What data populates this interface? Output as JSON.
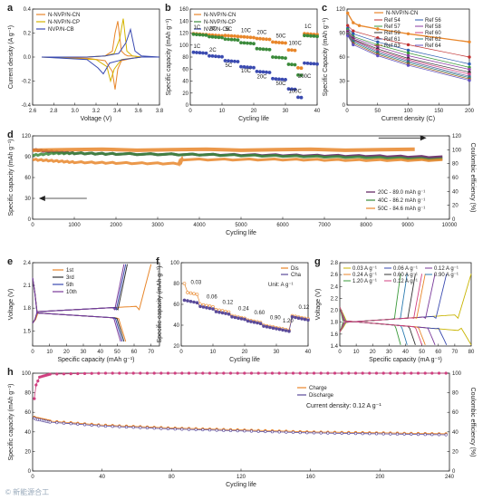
{
  "figure": {
    "panels": [
      "a",
      "b",
      "c",
      "d",
      "e",
      "f",
      "g",
      "h"
    ],
    "watermark": "© 新能源合工"
  },
  "chart_data": [
    {
      "panel": "a",
      "type": "line",
      "xlabel": "Voltage (V)",
      "ylabel": "Current density (A g⁻¹)",
      "xlim": [
        2.4,
        3.8
      ],
      "ylim": [
        -0.4,
        0.4
      ],
      "xticks": [
        "2.6",
        "2.8",
        "3.0",
        "3.2",
        "3.4",
        "3.6",
        "3.8"
      ],
      "yticks": [
        "-0.4",
        "-0.2",
        "0.0",
        "0.2",
        "0.4"
      ],
      "series": [
        {
          "name": "N-NVP/N-CN",
          "color": "#e8862a",
          "x": [
            2.5,
            3.0,
            3.2,
            3.28,
            3.31,
            3.34,
            3.38,
            3.42,
            3.45,
            3.5,
            3.6,
            3.8,
            3.6,
            3.5,
            3.38,
            3.34,
            3.31,
            3.28,
            3.2,
            3.0,
            2.5
          ],
          "y": [
            0.0,
            0.0,
            0.01,
            0.05,
            0.2,
            0.3,
            0.05,
            0.02,
            0.01,
            0.01,
            0.0,
            0.0,
            0.0,
            -0.01,
            -0.03,
            -0.1,
            -0.27,
            -0.12,
            -0.03,
            -0.01,
            0.0
          ]
        },
        {
          "name": "N-NVP/N-CP",
          "color": "#d4b400",
          "x": [
            2.5,
            3.0,
            3.2,
            3.3,
            3.36,
            3.4,
            3.44,
            3.5,
            3.6,
            3.8,
            3.6,
            3.5,
            3.38,
            3.3,
            3.26,
            3.22,
            3.1,
            2.5
          ],
          "y": [
            0.0,
            0.0,
            0.01,
            0.03,
            0.15,
            0.32,
            0.05,
            0.01,
            0.0,
            0.0,
            0.0,
            -0.01,
            -0.02,
            -0.1,
            -0.2,
            -0.08,
            -0.02,
            0.0
          ]
        },
        {
          "name": "NVP/N-CB",
          "color": "#3a4ab0",
          "x": [
            2.5,
            3.0,
            3.2,
            3.35,
            3.43,
            3.48,
            3.53,
            3.6,
            3.8,
            3.6,
            3.4,
            3.25,
            3.18,
            3.12,
            3.0,
            2.5
          ],
          "y": [
            0.0,
            0.0,
            0.01,
            0.03,
            0.12,
            0.23,
            0.05,
            0.01,
            0.0,
            0.0,
            -0.02,
            -0.05,
            -0.14,
            -0.09,
            -0.02,
            0.0
          ]
        }
      ]
    },
    {
      "panel": "b",
      "type": "scatter",
      "xlabel": "Cycling life",
      "ylabel": "Specific capacity (mAh g⁻¹)",
      "xlim": [
        0,
        40
      ],
      "ylim": [
        0,
        160
      ],
      "xticks": [
        "0",
        "10",
        "20",
        "30",
        "40"
      ],
      "yticks": [
        "0",
        "20",
        "40",
        "60",
        "80",
        "100",
        "120",
        "140",
        "160"
      ],
      "rate_labels": [
        "1C",
        "2C",
        "5C",
        "10C",
        "20C",
        "50C",
        "100C",
        "1C"
      ],
      "rate_label_200": "200C",
      "series": [
        {
          "name": "N-NVP/N-CN",
          "color": "#e8862a",
          "steps": [
            [
              1,
              5,
              119
            ],
            [
              6,
              10,
              117
            ],
            [
              11,
              15,
              116
            ],
            [
              16,
              20,
              114
            ],
            [
              21,
              25,
              111
            ],
            [
              26,
              30,
              105
            ],
            [
              31,
              33,
              92
            ],
            [
              34,
              35,
              62
            ],
            [
              36,
              40,
              119
            ]
          ]
        },
        {
          "name": "N-NVP/N-CP",
          "color": "#3a8a3a",
          "steps": [
            [
              1,
              5,
              118
            ],
            [
              6,
              10,
              114
            ],
            [
              11,
              15,
              110
            ],
            [
              16,
              20,
              104
            ],
            [
              21,
              25,
              94
            ],
            [
              26,
              30,
              80
            ],
            [
              31,
              33,
              68
            ],
            [
              34,
              35,
              50
            ],
            [
              36,
              40,
              116
            ]
          ]
        },
        {
          "name": "NVP/N-CB",
          "color": "#3a4ab0",
          "steps": [
            [
              1,
              5,
              88
            ],
            [
              6,
              10,
              82
            ],
            [
              11,
              15,
              74
            ],
            [
              16,
              20,
              64
            ],
            [
              21,
              25,
              56
            ],
            [
              26,
              30,
              44
            ],
            [
              31,
              33,
              27
            ],
            [
              34,
              35,
              13
            ],
            [
              36,
              40,
              70
            ]
          ]
        }
      ]
    },
    {
      "panel": "c",
      "type": "line",
      "xlabel": "Current density (C)",
      "ylabel": "Specific Capacity (mAh g⁻¹)",
      "xlim": [
        0,
        200
      ],
      "ylim": [
        0,
        140
      ],
      "xticks": [
        "0",
        "50",
        "100",
        "150",
        "200"
      ],
      "yticks": [
        "0",
        "30",
        "60",
        "90",
        "120"
      ],
      "series": [
        {
          "name": "N-NVP/N-CN",
          "color": "#e8862a",
          "x": [
            1,
            10,
            20,
            50,
            100,
            200
          ],
          "y": [
            134,
            120,
            116,
            111,
            104,
            92
          ]
        },
        {
          "name": "Ref 54",
          "color": "#c03030",
          "x": [
            1,
            10,
            50,
            100,
            200
          ],
          "y": [
            116,
            108,
            98,
            88,
            70
          ]
        },
        {
          "name": "Ref 56",
          "color": "#2a5ab0",
          "x": [
            1,
            10,
            50,
            100,
            200
          ],
          "y": [
            112,
            104,
            92,
            80,
            60
          ]
        },
        {
          "name": "Ref 57",
          "color": "#3a9a3a",
          "x": [
            1,
            10,
            50,
            100,
            200
          ],
          "y": [
            110,
            100,
            88,
            76,
            55
          ]
        },
        {
          "name": "Ref 58",
          "color": "#8a3aa0",
          "x": [
            1,
            10,
            50,
            100,
            200
          ],
          "y": [
            108,
            98,
            85,
            72,
            52
          ]
        },
        {
          "name": "Ref 59",
          "color": "#333333",
          "x": [
            1,
            10,
            50,
            100,
            200
          ],
          "y": [
            106,
            96,
            82,
            68,
            48
          ]
        },
        {
          "name": "Ref 60",
          "color": "#d04080",
          "x": [
            1,
            10,
            50,
            100,
            200
          ],
          "y": [
            105,
            95,
            80,
            66,
            45
          ]
        },
        {
          "name": "Ref 61",
          "color": "#5a5a9a",
          "x": [
            1,
            10,
            50,
            100,
            200
          ],
          "y": [
            104,
            94,
            78,
            64,
            42
          ]
        },
        {
          "name": "Ref 62",
          "color": "#208080",
          "x": [
            1,
            10,
            50,
            100,
            200
          ],
          "y": [
            103,
            92,
            76,
            62,
            40
          ]
        },
        {
          "name": "Ref 63",
          "color": "#a06020",
          "x": [
            1,
            10,
            50,
            100,
            200
          ],
          "y": [
            102,
            90,
            74,
            60,
            38
          ]
        },
        {
          "name": "Ref 64",
          "color": "#6050c0",
          "x": [
            1,
            10,
            50,
            100,
            200
          ],
          "y": [
            101,
            88,
            72,
            58,
            36
          ]
        }
      ]
    },
    {
      "panel": "d",
      "type": "scatter",
      "xlabel": "Cycling life",
      "ylabel": "Specific capacity (mAh g⁻¹)",
      "y2label": "Coulombic efficiency (%)",
      "xlim": [
        0,
        10000
      ],
      "ylim": [
        0,
        120
      ],
      "y2lim": [
        0,
        120
      ],
      "xticks": [
        "0",
        "1000",
        "2000",
        "3000",
        "4000",
        "5000",
        "6000",
        "7000",
        "8000",
        "9000",
        "10000"
      ],
      "yticks": [
        "0",
        "30",
        "60",
        "90",
        "120"
      ],
      "y2ticks": [
        "0",
        "20",
        "40",
        "60",
        "80",
        "100",
        "120"
      ],
      "series": [
        {
          "name": "20C - 89.0 mAh g⁻¹",
          "color": "#5a1a5a",
          "x": [
            0,
            500,
            1000,
            2000,
            4000,
            6000,
            8000,
            10000
          ],
          "y": [
            100,
            97,
            95,
            94,
            93,
            92,
            91,
            89
          ]
        },
        {
          "name": "40C - 86.2 mAh g⁻¹",
          "color": "#3a8a3a",
          "x": [
            0,
            500,
            1000,
            2000,
            4000,
            6000,
            8000,
            10000
          ],
          "y": [
            92,
            95,
            95,
            94,
            93,
            91,
            89,
            86
          ]
        },
        {
          "name": "50C - 84.6 mAh g⁻¹",
          "color": "#e8862a",
          "x": [
            0,
            500,
            1000,
            2000,
            3500,
            3600,
            6000,
            8000,
            10000
          ],
          "y": [
            86,
            84,
            82,
            81,
            80,
            86,
            86,
            85,
            85
          ]
        },
        {
          "name": "Coulombic efficiency",
          "color": "#e8862a",
          "x": [
            0,
            10000
          ],
          "y": [
            100,
            100
          ]
        }
      ]
    },
    {
      "panel": "e",
      "type": "line",
      "xlabel": "Specific capacity (mAh g⁻¹)",
      "ylabel": "Voltage (V)",
      "xlim": [
        0,
        75
      ],
      "ylim": [
        1.3,
        2.4
      ],
      "xticks": [
        "0",
        "10",
        "20",
        "30",
        "40",
        "50",
        "60",
        "70"
      ],
      "yticks": [
        "1.5",
        "1.8",
        "2.1",
        "2.4"
      ],
      "series": [
        {
          "name": "1st",
          "color": "#e8862a",
          "charge_end": 70,
          "discharge_end": 55
        },
        {
          "name": "3rd",
          "color": "#333333",
          "charge_end": 56,
          "discharge_end": 54
        },
        {
          "name": "5th",
          "color": "#3a4ab0",
          "charge_end": 55,
          "discharge_end": 53
        },
        {
          "name": "10th",
          "color": "#7a3a9a",
          "charge_end": 54,
          "discharge_end": 52
        }
      ]
    },
    {
      "panel": "f",
      "type": "scatter",
      "xlabel": "Cycling life",
      "ylabel": "Specific capacity (mAh g⁻¹)",
      "xlim": [
        0,
        40
      ],
      "ylim": [
        20,
        100
      ],
      "xticks": [
        "0",
        "10",
        "20",
        "30",
        "40"
      ],
      "yticks": [
        "20",
        "40",
        "60",
        "80",
        "100"
      ],
      "unit_text": "Unit:  A g⁻¹",
      "rate_labels": [
        "0.03",
        "0.06",
        "0.12",
        "0.24",
        "0.60",
        "0.90",
        "1.20",
        "0.12"
      ],
      "series": [
        {
          "name": "Dis",
          "color": "#e8862a",
          "steps": [
            [
              1,
              5,
              72
            ],
            [
              6,
              10,
              60
            ],
            [
              11,
              15,
              55
            ],
            [
              16,
              20,
              49
            ],
            [
              21,
              25,
              45
            ],
            [
              26,
              30,
              40
            ],
            [
              31,
              34,
              37
            ],
            [
              35,
              40,
              49
            ]
          ]
        },
        {
          "name": "Cha",
          "color": "#5a4a9a",
          "steps": [
            [
              1,
              5,
              64
            ],
            [
              6,
              10,
              58
            ],
            [
              11,
              15,
              53
            ],
            [
              16,
              20,
              48
            ],
            [
              21,
              25,
              44
            ],
            [
              26,
              30,
              39
            ],
            [
              31,
              34,
              36
            ],
            [
              35,
              40,
              48
            ]
          ]
        }
      ]
    },
    {
      "panel": "g",
      "type": "line",
      "xlabel": "Specific capacity (mA g⁻¹)",
      "ylabel": "Voltage (V)",
      "xlim": [
        0,
        80
      ],
      "ylim": [
        1.3,
        2.8
      ],
      "xticks": [
        "0",
        "10",
        "20",
        "30",
        "40",
        "50",
        "60",
        "70",
        "80"
      ],
      "yticks": [
        "1.4",
        "1.6",
        "1.8",
        "2.0",
        "2.2",
        "2.4",
        "2.6",
        "2.8"
      ],
      "series": [
        {
          "name": "0.03 A g⁻¹",
          "color": "#c8b400",
          "capacity": 80
        },
        {
          "name": "0.06 A g⁻¹",
          "color": "#3a4ab0",
          "capacity": 65
        },
        {
          "name": "0.12 A g⁻¹",
          "color": "#7a3a9a",
          "capacity": 58
        },
        {
          "name": "0.24 A g⁻¹",
          "color": "#e8862a",
          "capacity": 52
        },
        {
          "name": "0.60 A g⁻¹",
          "color": "#333333",
          "capacity": 46
        },
        {
          "name": "0.90 A g⁻¹",
          "color": "#2a7ab0",
          "capacity": 41
        },
        {
          "name": "1.20 A g⁻¹",
          "color": "#3a9a3a",
          "capacity": 37
        },
        {
          "name": "0.12 A g⁻¹",
          "color": "#d04080",
          "capacity": 50
        }
      ]
    },
    {
      "panel": "h",
      "type": "scatter",
      "xlabel": "Cycling life",
      "ylabel": "Specific capacity (mAh g⁻¹)",
      "y2label": "Coulombic efficiency (%)",
      "xlim": [
        0,
        240
      ],
      "ylim": [
        0,
        100
      ],
      "y2lim": [
        0,
        100
      ],
      "xticks": [
        "0",
        "40",
        "80",
        "120",
        "160",
        "200",
        "240"
      ],
      "yticks": [
        "0",
        "20",
        "40",
        "60",
        "80",
        "100"
      ],
      "y2ticks": [
        "0",
        "20",
        "40",
        "60",
        "80",
        "100"
      ],
      "annotation": "Current density: 0.12 A g⁻¹",
      "series": [
        {
          "name": "Charge",
          "color": "#e8862a",
          "x": [
            1,
            2,
            5,
            10,
            40,
            80,
            120,
            160,
            200,
            240
          ],
          "y": [
            55,
            54,
            53,
            51,
            47,
            44,
            42,
            40,
            39,
            38
          ]
        },
        {
          "name": "Discharge",
          "color": "#5a4a9a",
          "x": [
            1,
            2,
            5,
            10,
            40,
            80,
            120,
            160,
            200,
            240
          ],
          "y": [
            54,
            53,
            52,
            50,
            46,
            43,
            41,
            39,
            38,
            37
          ]
        },
        {
          "name": "Coulombic efficiency",
          "color": "#d04080",
          "x": [
            1,
            2,
            4,
            10,
            40,
            240
          ],
          "y": [
            74,
            88,
            96,
            99,
            100,
            100
          ]
        }
      ]
    }
  ]
}
